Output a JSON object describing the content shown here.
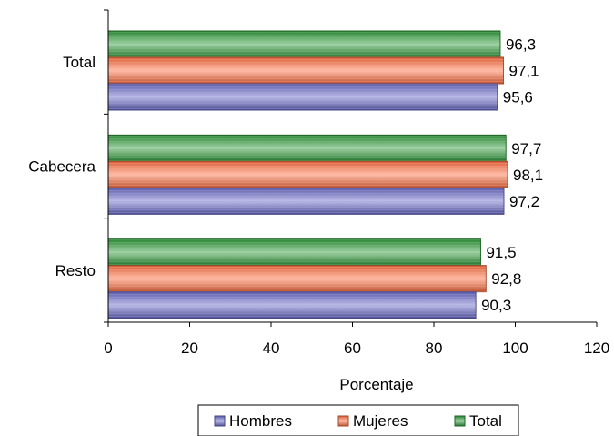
{
  "chart_data": {
    "type": "bar",
    "orientation": "horizontal",
    "categories": [
      "Total",
      "Cabecera",
      "Resto"
    ],
    "series": [
      {
        "name": "Total",
        "values": [
          96.3,
          97.7,
          91.5
        ],
        "value_labels": [
          "96,3",
          "97,7",
          "91,5"
        ],
        "color": "#2e9b3a"
      },
      {
        "name": "Mujeres",
        "values": [
          97.1,
          98.1,
          92.8
        ],
        "value_labels": [
          "97,1",
          "98,1",
          "92,8"
        ],
        "color": "#ff7043"
      },
      {
        "name": "Hombres",
        "values": [
          95.6,
          97.2,
          90.3
        ],
        "value_labels": [
          "95,6",
          "97,2",
          "90,3"
        ],
        "color": "#6b6bc9"
      }
    ],
    "xlabel": "Porcentaje",
    "xlim": [
      0,
      120
    ],
    "xticks": [
      0,
      20,
      40,
      60,
      80,
      100,
      120
    ],
    "grid": false,
    "legend": {
      "placement": "bottom",
      "entries": [
        "Hombres",
        "Mujeres",
        "Total"
      ]
    }
  }
}
